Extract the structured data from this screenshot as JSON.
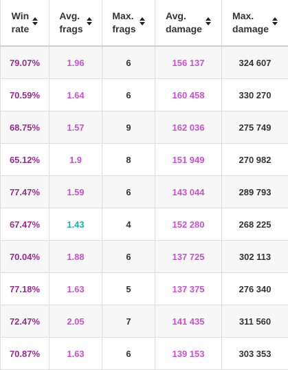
{
  "headers": [
    {
      "line1": "Win",
      "line2": "rate"
    },
    {
      "line1": "Avg.",
      "line2": "frags"
    },
    {
      "line1": "Max.",
      "line2": "frags"
    },
    {
      "line1": "Avg.",
      "line2": "damage"
    },
    {
      "line1": "Max.",
      "line2": "damage"
    }
  ],
  "colors": {
    "win_rate": "#9a2a8f",
    "avg_purple": "#cc4fd2",
    "avg_teal": "#18b0a8",
    "neutral": "#333333"
  },
  "rows": [
    {
      "win_rate": "79.07%",
      "avg_frags": "1.96",
      "avg_frags_color": "purple",
      "max_frags": "6",
      "avg_damage": "156 137",
      "max_damage": "324 607"
    },
    {
      "win_rate": "70.59%",
      "avg_frags": "1.64",
      "avg_frags_color": "purple",
      "max_frags": "6",
      "avg_damage": "160 458",
      "max_damage": "330 270"
    },
    {
      "win_rate": "68.75%",
      "avg_frags": "1.57",
      "avg_frags_color": "purple",
      "max_frags": "9",
      "avg_damage": "162 036",
      "max_damage": "275 749"
    },
    {
      "win_rate": "65.12%",
      "avg_frags": "1.9",
      "avg_frags_color": "purple",
      "max_frags": "8",
      "avg_damage": "151 949",
      "max_damage": "270 982"
    },
    {
      "win_rate": "77.47%",
      "avg_frags": "1.59",
      "avg_frags_color": "purple",
      "max_frags": "6",
      "avg_damage": "143 044",
      "max_damage": "289 793"
    },
    {
      "win_rate": "67.47%",
      "avg_frags": "1.43",
      "avg_frags_color": "teal",
      "max_frags": "4",
      "avg_damage": "152 280",
      "max_damage": "268 225"
    },
    {
      "win_rate": "70.04%",
      "avg_frags": "1.88",
      "avg_frags_color": "purple",
      "max_frags": "6",
      "avg_damage": "137 725",
      "max_damage": "302 113"
    },
    {
      "win_rate": "77.18%",
      "avg_frags": "1.63",
      "avg_frags_color": "purple",
      "max_frags": "5",
      "avg_damage": "137 375",
      "max_damage": "276 340"
    },
    {
      "win_rate": "72.47%",
      "avg_frags": "2.05",
      "avg_frags_color": "purple",
      "max_frags": "7",
      "avg_damage": "141 435",
      "max_damage": "311 560"
    },
    {
      "win_rate": "70.87%",
      "avg_frags": "1.63",
      "avg_frags_color": "purple",
      "max_frags": "6",
      "avg_damage": "139 153",
      "max_damage": "303 353"
    }
  ]
}
